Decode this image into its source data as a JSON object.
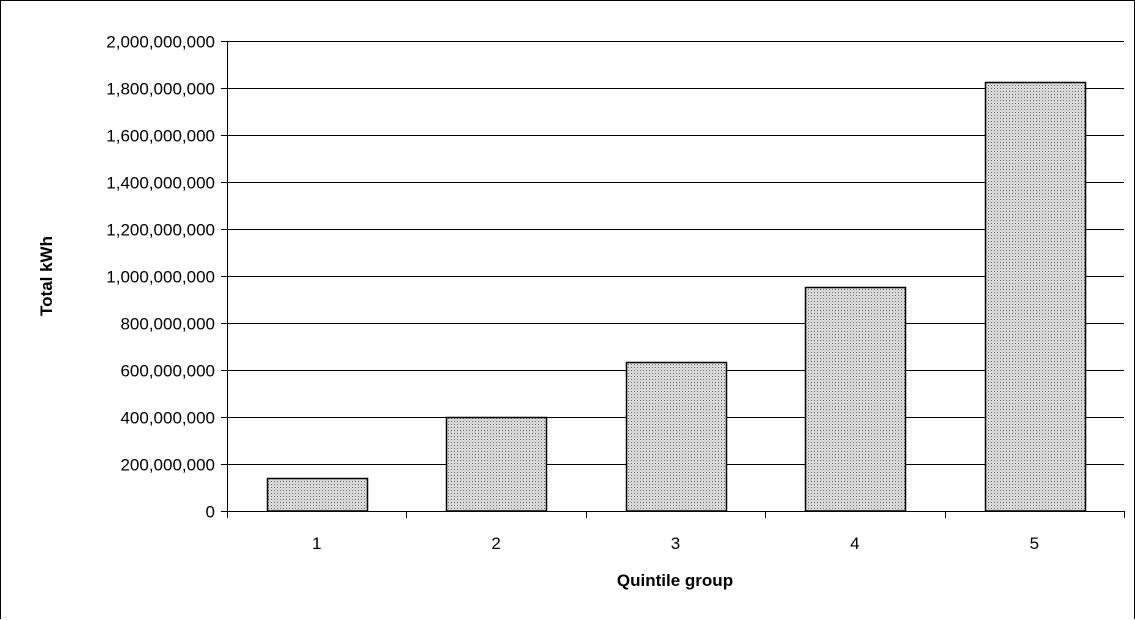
{
  "chart_data": {
    "type": "bar",
    "categories": [
      "1",
      "2",
      "3",
      "4",
      "5"
    ],
    "values": [
      140000000,
      402000000,
      634000000,
      955000000,
      1827000000
    ],
    "title": "",
    "xlabel": "Quintile group",
    "ylabel": "Total kWh",
    "ylim": [
      0,
      2000000000
    ],
    "ytick_step": 200000000,
    "ytick_labels": [
      "0",
      "200,000,000",
      "400,000,000",
      "600,000,000",
      "800,000,000",
      "1,000,000,000",
      "1,200,000,000",
      "1,400,000,000",
      "1,600,000,000",
      "1,800,000,000",
      "2,000,000,000"
    ],
    "grid": true,
    "legend": "none",
    "bar_fill": "#d8d8d8",
    "bar_pattern": "dotted",
    "bar_stroke": "#000000",
    "gridline_color": "#000000"
  }
}
